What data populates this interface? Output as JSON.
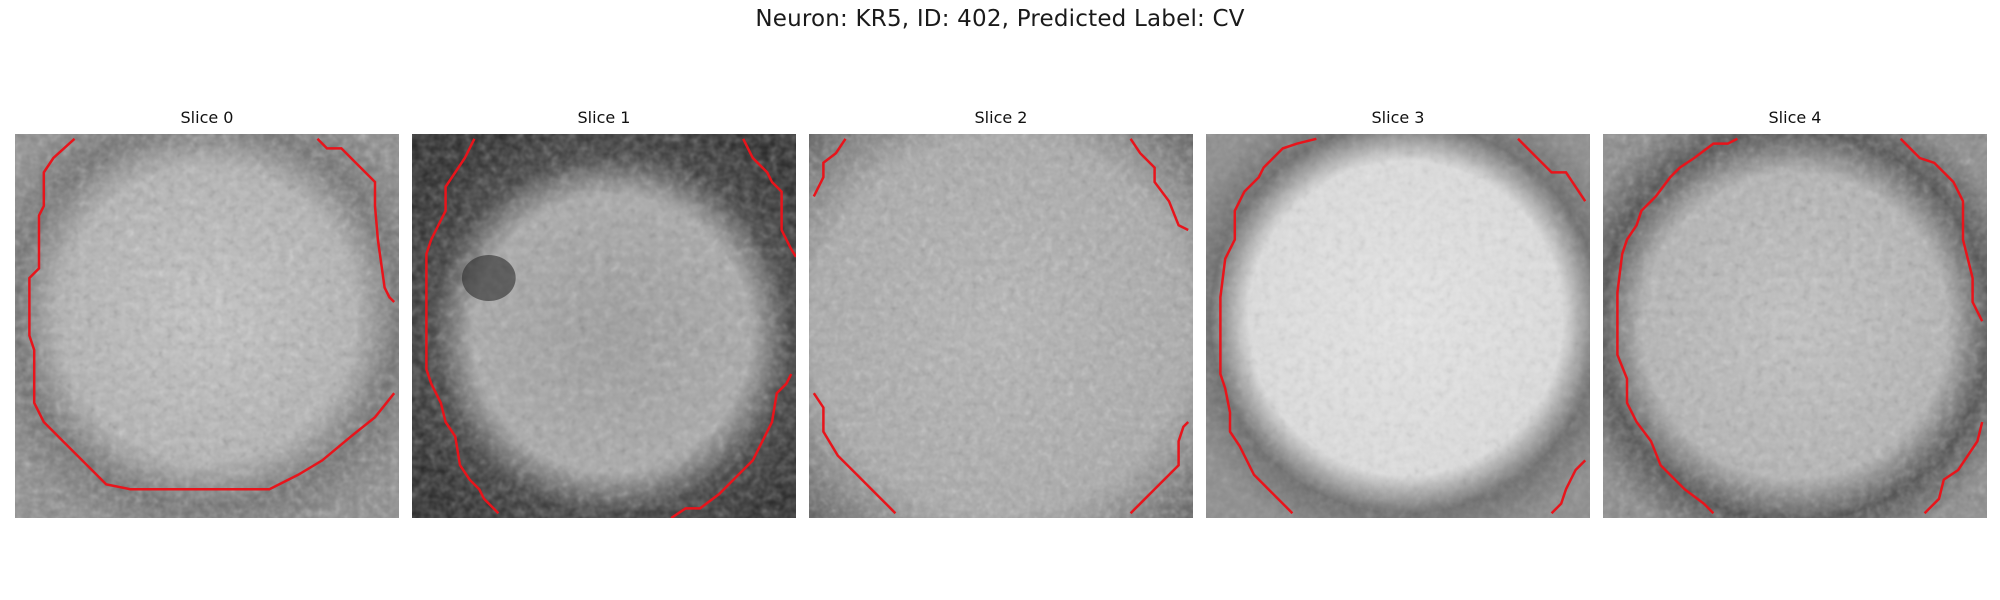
{
  "figure": {
    "title": "Neuron: KR5, ID: 402, Predicted Label: CV"
  },
  "colors": {
    "background": "#ffffff",
    "contour": "#e8141b",
    "image_colormap": "gray"
  },
  "panels": [
    {
      "title": "Slice 0",
      "icon": "grayscale-micrograph-with-red-contour"
    },
    {
      "title": "Slice 1",
      "icon": "grayscale-micrograph-with-red-contour"
    },
    {
      "title": "Slice 2",
      "icon": "grayscale-micrograph-with-red-contour"
    },
    {
      "title": "Slice 3",
      "icon": "grayscale-micrograph-with-red-contour"
    },
    {
      "title": "Slice 4",
      "icon": "grayscale-micrograph-with-red-contour"
    }
  ]
}
